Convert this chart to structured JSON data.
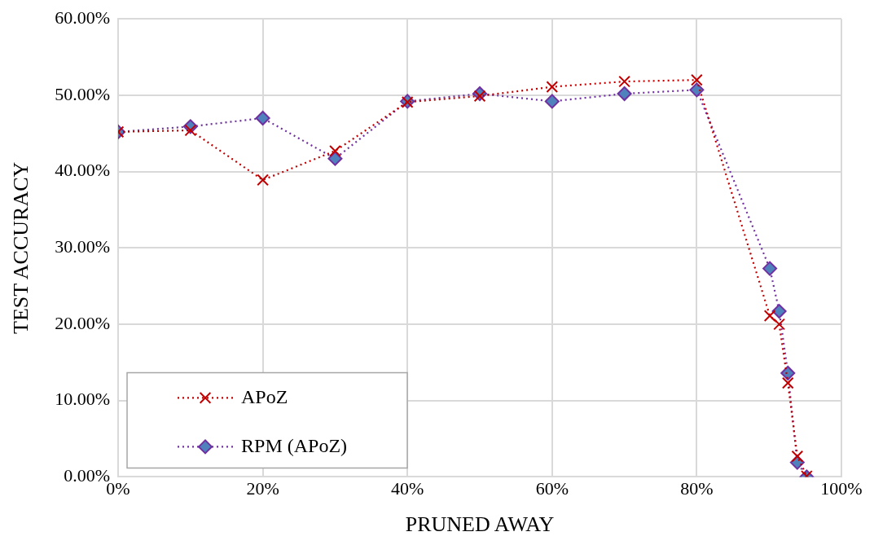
{
  "chart_data": {
    "type": "line",
    "xlabel": "PRUNED AWAY",
    "ylabel": "TEST ACCURACY",
    "xlim": [
      0,
      100
    ],
    "xticks": [
      {
        "value": 0,
        "label": "0%"
      },
      {
        "value": 20,
        "label": "20%"
      },
      {
        "value": 40,
        "label": "40%"
      },
      {
        "value": 60,
        "label": "60%"
      },
      {
        "value": 80,
        "label": "80%"
      },
      {
        "value": 100,
        "label": "100%"
      }
    ],
    "ylim": [
      0,
      60
    ],
    "yticks": [
      {
        "value": 0,
        "label": "0.00%"
      },
      {
        "value": 10,
        "label": "10.00%"
      },
      {
        "value": 20,
        "label": "20.00%"
      },
      {
        "value": 30,
        "label": "30.00%"
      },
      {
        "value": 40,
        "label": "40.00%"
      },
      {
        "value": 50,
        "label": "50.00%"
      },
      {
        "value": 60,
        "label": "60.00%"
      }
    ],
    "grid": true,
    "legend": "bottom left",
    "line_style": "dotted",
    "series": [
      {
        "name": "APoZ",
        "color": "#c00000",
        "marker": "cross",
        "x": [
          0,
          10,
          20,
          30,
          40,
          50,
          60,
          70,
          80,
          90.1,
          91.4,
          92.6,
          93.9,
          95.2
        ],
        "values": [
          45.2,
          45.4,
          38.9,
          42.7,
          49.1,
          49.9,
          51.1,
          51.8,
          52.0,
          21.1,
          20.0,
          12.3,
          2.7,
          0.1
        ]
      },
      {
        "name": "RPM (APoZ)",
        "color": "#7030a0",
        "marker": "diamond",
        "x": [
          0,
          10,
          20,
          30,
          40,
          50,
          60,
          70,
          80,
          90.1,
          91.4,
          92.6,
          93.9,
          95.2
        ],
        "values": [
          45.2,
          45.9,
          47.0,
          41.7,
          49.2,
          50.2,
          49.2,
          50.2,
          50.7,
          27.3,
          21.7,
          13.6,
          1.9,
          0.0
        ]
      }
    ]
  }
}
